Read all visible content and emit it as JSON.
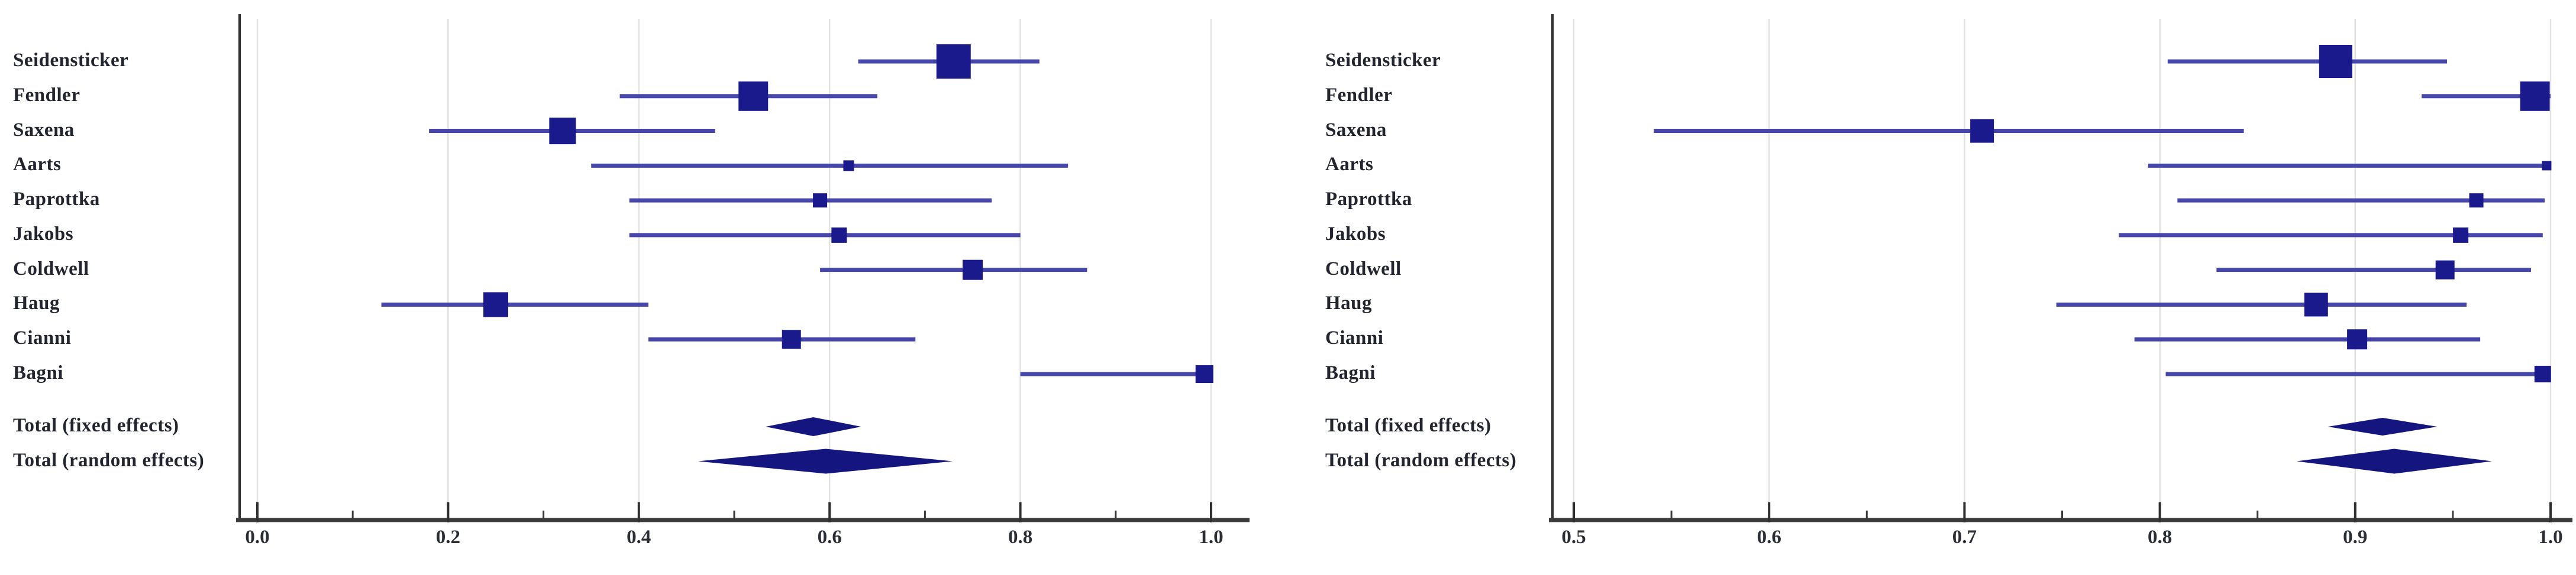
{
  "figure": {
    "description": "Two side-by-side forest plots (meta-analysis of proportions) with per-study confidence intervals and pooled fixed/random effects diamonds",
    "background": "#ffffff"
  },
  "colors": {
    "marker": "#1a1a8d",
    "ci_line": "#4747aa",
    "diamond": "#15157f",
    "grid": "#e2e2e4",
    "axis": "#3b3b3b",
    "text": "#22242e"
  },
  "chart_data": [
    {
      "type": "forest",
      "panel": "left",
      "title": "",
      "xlabel": "",
      "xlim": [
        0.0,
        1.0
      ],
      "xticks": [
        0.0,
        0.2,
        0.4,
        0.6,
        0.8,
        1.0
      ],
      "xtick_labels": [
        "0.0",
        "0.2",
        "0.4",
        "0.6",
        "0.8",
        "1.0"
      ],
      "minor_tick_step": 0.1,
      "grid": true,
      "legend": false,
      "rows": [
        {
          "label": "Seidensticker",
          "shape": "square",
          "estimate": 0.73,
          "ci": [
            0.63,
            0.82
          ],
          "marker_size": 58
        },
        {
          "label": "Fendler",
          "shape": "square",
          "estimate": 0.52,
          "ci": [
            0.38,
            0.65
          ],
          "marker_size": 50
        },
        {
          "label": "Saxena",
          "shape": "square",
          "estimate": 0.32,
          "ci": [
            0.18,
            0.48
          ],
          "marker_size": 45
        },
        {
          "label": "Aarts",
          "shape": "square",
          "estimate": 0.62,
          "ci": [
            0.35,
            0.85
          ],
          "marker_size": 18
        },
        {
          "label": "Paprottka",
          "shape": "square",
          "estimate": 0.59,
          "ci": [
            0.39,
            0.77
          ],
          "marker_size": 24
        },
        {
          "label": "Jakobs",
          "shape": "square",
          "estimate": 0.61,
          "ci": [
            0.39,
            0.8
          ],
          "marker_size": 26
        },
        {
          "label": "Coldwell",
          "shape": "square",
          "estimate": 0.75,
          "ci": [
            0.59,
            0.87
          ],
          "marker_size": 34
        },
        {
          "label": "Haug",
          "shape": "square",
          "estimate": 0.25,
          "ci": [
            0.13,
            0.41
          ],
          "marker_size": 42
        },
        {
          "label": "Cianni",
          "shape": "square",
          "estimate": 0.56,
          "ci": [
            0.41,
            0.69
          ],
          "marker_size": 32
        },
        {
          "label": "Bagni",
          "shape": "square",
          "estimate": 0.993,
          "ci": [
            0.8,
            1.0
          ],
          "marker_size": 30
        },
        {
          "label": "Total (fixed effects)",
          "shape": "diamond",
          "estimate": 0.583,
          "ci": [
            0.533,
            0.633
          ],
          "half_height": 16
        },
        {
          "label": "Total (random effects)",
          "shape": "diamond",
          "estimate": 0.596,
          "ci": [
            0.462,
            0.729
          ],
          "half_height": 21
        }
      ]
    },
    {
      "type": "forest",
      "panel": "right",
      "title": "",
      "xlabel": "",
      "xlim": [
        0.5,
        1.0
      ],
      "xticks": [
        0.5,
        0.6,
        0.7,
        0.8,
        0.9,
        1.0
      ],
      "xtick_labels": [
        "0.5",
        "0.6",
        "0.7",
        "0.8",
        "0.9",
        "1.0"
      ],
      "minor_tick_step": 0.05,
      "grid": true,
      "legend": false,
      "rows": [
        {
          "label": "Seidensticker",
          "shape": "square",
          "estimate": 0.89,
          "ci": [
            0.804,
            0.947
          ],
          "marker_size": 56
        },
        {
          "label": "Fendler",
          "shape": "square",
          "estimate": 0.992,
          "ci": [
            0.934,
            1.0
          ],
          "marker_size": 50
        },
        {
          "label": "Saxena",
          "shape": "square",
          "estimate": 0.709,
          "ci": [
            0.541,
            0.843
          ],
          "marker_size": 40
        },
        {
          "label": "Aarts",
          "shape": "square",
          "estimate": 0.998,
          "ci": [
            0.794,
            1.0
          ],
          "marker_size": 16
        },
        {
          "label": "Paprottka",
          "shape": "square",
          "estimate": 0.962,
          "ci": [
            0.809,
            0.997
          ],
          "marker_size": 24
        },
        {
          "label": "Jakobs",
          "shape": "square",
          "estimate": 0.954,
          "ci": [
            0.779,
            0.996
          ],
          "marker_size": 26
        },
        {
          "label": "Coldwell",
          "shape": "square",
          "estimate": 0.946,
          "ci": [
            0.829,
            0.99
          ],
          "marker_size": 32
        },
        {
          "label": "Haug",
          "shape": "square",
          "estimate": 0.88,
          "ci": [
            0.747,
            0.957
          ],
          "marker_size": 40
        },
        {
          "label": "Cianni",
          "shape": "square",
          "estimate": 0.901,
          "ci": [
            0.787,
            0.964
          ],
          "marker_size": 34
        },
        {
          "label": "Bagni",
          "shape": "square",
          "estimate": 0.996,
          "ci": [
            0.803,
            1.0
          ],
          "marker_size": 28
        },
        {
          "label": "Total (fixed effects)",
          "shape": "diamond",
          "estimate": 0.914,
          "ci": [
            0.886,
            0.942
          ],
          "half_height": 15
        },
        {
          "label": "Total (random effects)",
          "shape": "diamond",
          "estimate": 0.92,
          "ci": [
            0.87,
            0.97
          ],
          "half_height": 21
        }
      ]
    }
  ]
}
